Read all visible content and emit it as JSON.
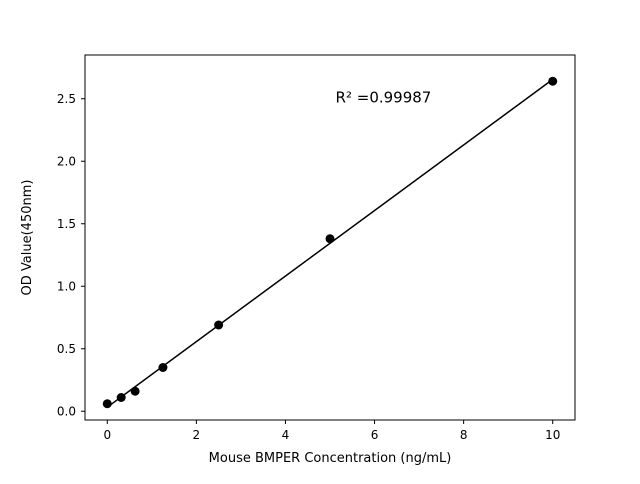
{
  "chart_data": {
    "type": "scatter",
    "title": "",
    "xlabel": "Mouse BMPER Concentration (ng/mL)",
    "ylabel": "OD Value(450nm)",
    "x": [
      0,
      0.3125,
      0.625,
      1.25,
      2.5,
      5,
      10
    ],
    "y": [
      0.06,
      0.11,
      0.16,
      0.35,
      0.69,
      1.38,
      2.64
    ],
    "fit": "linear",
    "annotation": {
      "text": "R² =0.99987",
      "x": 6.2,
      "y": 2.47
    },
    "xlim": [
      -0.5,
      10.5
    ],
    "ylim": [
      -0.07,
      2.85
    ],
    "x_tick_labels": [
      "0",
      "2",
      "4",
      "6",
      "8",
      "10"
    ],
    "y_tick_labels": [
      "0.0",
      "0.5",
      "1.0",
      "1.5",
      "2.0",
      "2.5"
    ],
    "grid": false,
    "legend": null,
    "marker_color": "#000000",
    "line_color": "#000000",
    "background": "#ffffff"
  }
}
